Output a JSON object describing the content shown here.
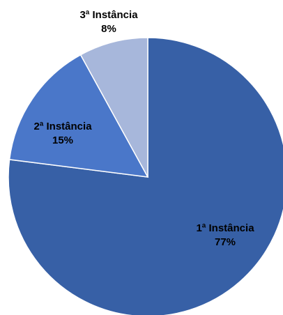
{
  "chart_data": {
    "type": "pie",
    "title": "",
    "categories": [
      "1ª Instância",
      "2ª Instância",
      "3ª Instância"
    ],
    "values": [
      77,
      15,
      8
    ],
    "value_labels": [
      "77%",
      "15%",
      "8%"
    ],
    "colors": [
      "#3760a6",
      "#4a77c9",
      "#a7b7db"
    ],
    "start_angle": "12 o'clock",
    "direction": "clockwise",
    "legend": "none"
  }
}
